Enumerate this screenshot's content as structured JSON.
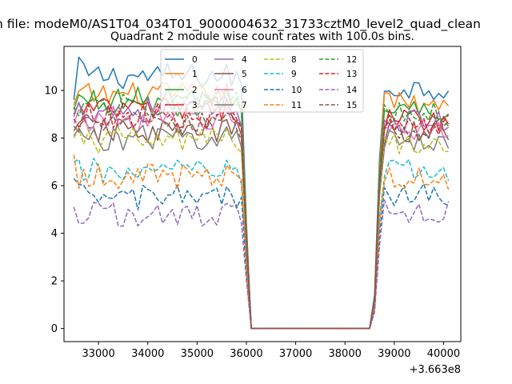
{
  "chart_data": {
    "type": "line",
    "suptitle": "n file: modeM0/AS1T04_034T01_9000004632_31733cztM0_level2_quad_clean",
    "title": "Quadrant 2 module wise count rates with 100.0s bins.",
    "xlabel": "",
    "ylabel": "",
    "x_offset_label": "+3.663e8",
    "xlim": [
      32300,
      40350
    ],
    "ylim": [
      -0.55,
      11.85
    ],
    "xticks": [
      33000,
      34000,
      35000,
      36000,
      37000,
      38000,
      39000,
      40000
    ],
    "xtick_labels": [
      "33000",
      "34000",
      "35000",
      "36000",
      "37000",
      "38000",
      "39000",
      "40000"
    ],
    "yticks": [
      0,
      2,
      4,
      6,
      8,
      10
    ],
    "ytick_labels": [
      "0",
      "2",
      "4",
      "6",
      "8",
      "10"
    ],
    "x_start": 32500,
    "x_step": 100,
    "gap_start_x": 36100,
    "gap_end_x": 38500,
    "legend_position": "top-center",
    "series": [
      {
        "name": "0",
        "color": "#1f77b4",
        "dash": "solid",
        "level1": 10.6,
        "level2": 10.1,
        "first": 9.6,
        "peak_index": 1,
        "peak_value": 11.4
      },
      {
        "name": "1",
        "color": "#ff7f0e",
        "dash": "solid",
        "level1": 9.8,
        "level2": 9.5,
        "first": 9.4
      },
      {
        "name": "2",
        "color": "#2ca02c",
        "dash": "solid",
        "level1": 9.6,
        "level2": 9.2,
        "first": 9.2
      },
      {
        "name": "3",
        "color": "#d62728",
        "dash": "solid",
        "level1": 9.2,
        "level2": 8.8,
        "first": 9.0
      },
      {
        "name": "4",
        "color": "#9467bd",
        "dash": "solid",
        "level1": 9.2,
        "level2": 8.7,
        "first": 8.9
      },
      {
        "name": "5",
        "color": "#8c564b",
        "dash": "solid",
        "level1": 8.3,
        "level2": 8.2,
        "first": 8.3
      },
      {
        "name": "6",
        "color": "#e377c2",
        "dash": "solid",
        "level1": 8.8,
        "level2": 8.4,
        "first": 8.6
      },
      {
        "name": "7",
        "color": "#7f7f7f",
        "dash": "solid",
        "level1": 8.0,
        "level2": 7.9,
        "first": 8.1
      },
      {
        "name": "8",
        "color": "#bcbd22",
        "dash": "dashed",
        "level1": 7.9,
        "level2": 7.8,
        "first": 8.0
      },
      {
        "name": "9",
        "color": "#17becf",
        "dash": "dashed",
        "level1": 6.6,
        "level2": 6.6,
        "first": 7.0
      },
      {
        "name": "10",
        "color": "#1f77b4",
        "dash": "dashed",
        "level1": 5.5,
        "level2": 5.6,
        "first": 6.3
      },
      {
        "name": "11",
        "color": "#ff7f0e",
        "dash": "dashed",
        "level1": 6.4,
        "level2": 6.3,
        "first": 7.3
      },
      {
        "name": "12",
        "color": "#2ca02c",
        "dash": "dashed",
        "level1": 9.4,
        "level2": 9.0,
        "first": 9.3
      },
      {
        "name": "13",
        "color": "#d62728",
        "dash": "dashed",
        "level1": 8.9,
        "level2": 8.5,
        "first": 8.8
      },
      {
        "name": "14",
        "color": "#9467bd",
        "dash": "dashed",
        "level1": 4.8,
        "level2": 4.9,
        "first": 5.1
      },
      {
        "name": "15",
        "color": "#8c564b",
        "dash": "dashed",
        "level1": 8.6,
        "level2": 8.3,
        "first": 8.5
      }
    ]
  }
}
